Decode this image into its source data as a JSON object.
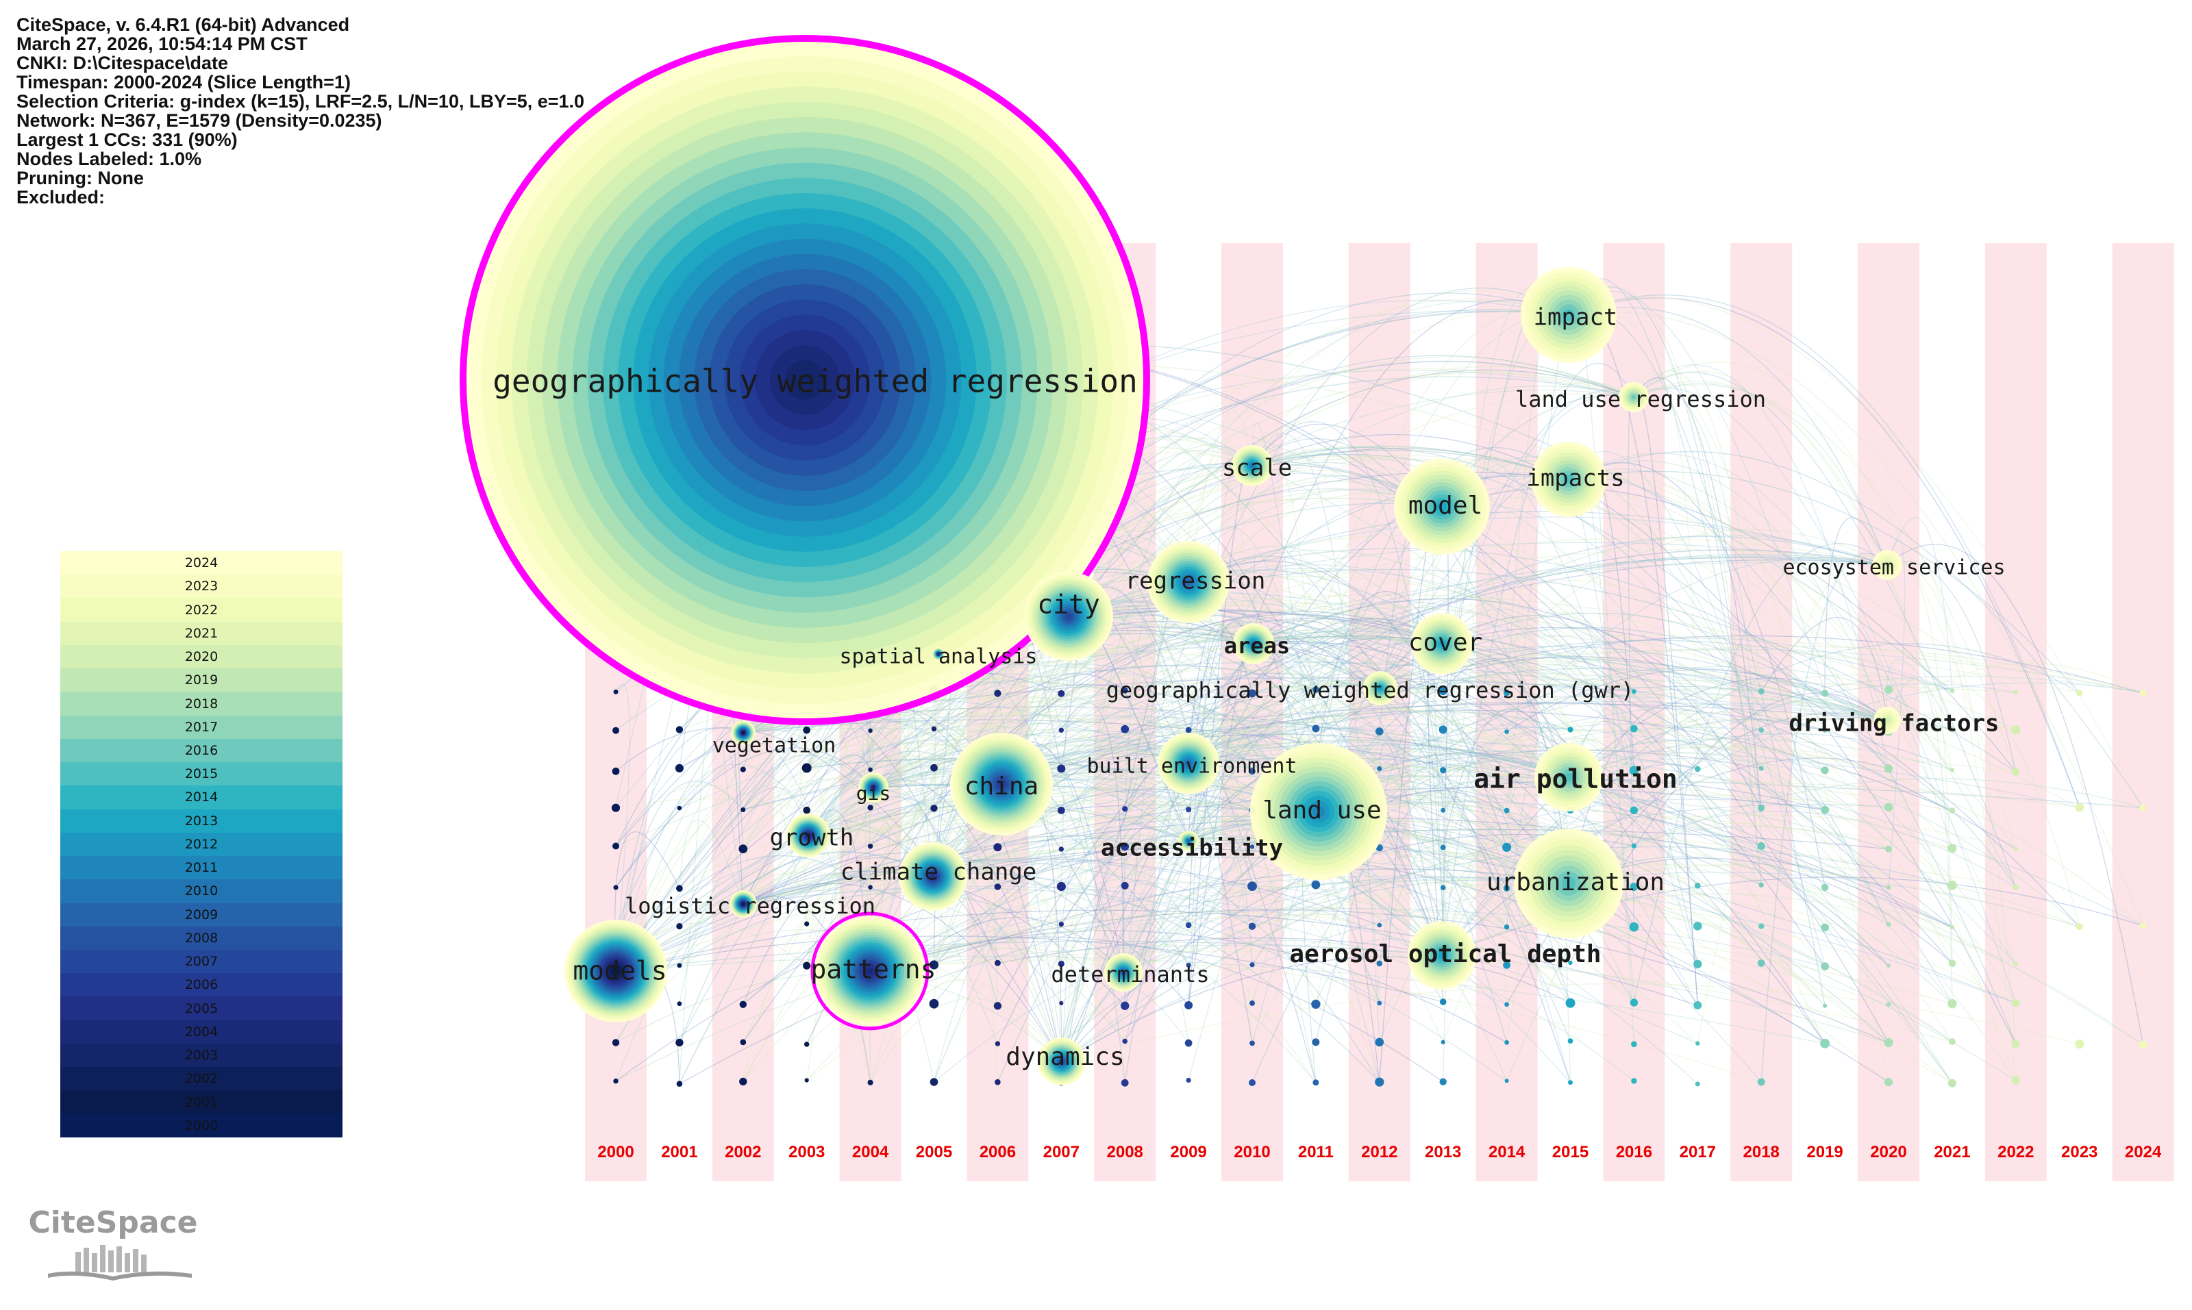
{
  "info": {
    "lines": [
      "CiteSpace, v. 6.4.R1 (64-bit) Advanced",
      "March 27, 2026, 10:54:14 PM CST",
      "CNKI: D:\\Citespace\\date",
      "Timespan: 2000-2024 (Slice Length=1)",
      "Selection Criteria: g-index (k=15), LRF=2.5, L/N=10, LBY=5, e=1.0",
      "Network: N=367, E=1579 (Density=0.0235)",
      "Largest 1 CCs: 331 (90%)",
      "Nodes Labeled: 1.0%",
      "Pruning: None",
      "Excluded:"
    ]
  },
  "legend": {
    "years": [
      "2024",
      "2023",
      "2022",
      "2021",
      "2020",
      "2019",
      "2018",
      "2017",
      "2016",
      "2015",
      "2014",
      "2013",
      "2012",
      "2011",
      "2010",
      "2009",
      "2008",
      "2007",
      "2006",
      "2005",
      "2004",
      "2003",
      "2002",
      "2001",
      "2000"
    ],
    "colors": [
      "#ffffcc",
      "#f9fdc2",
      "#f1fbb8",
      "#e3f5b4",
      "#d4efb3",
      "#c1e8b4",
      "#a9dfb6",
      "#8ed5b9",
      "#6fcabd",
      "#4fc0c0",
      "#2fb4c2",
      "#1da7c2",
      "#1d97c0",
      "#1f86bb",
      "#2275b3",
      "#2564ab",
      "#2553a2",
      "#24469b",
      "#233a93",
      "#212f86",
      "#1a2a78",
      "#142569",
      "#0e205a",
      "#091b4c",
      "#081d58"
    ]
  },
  "timeline": {
    "years": [
      "2000",
      "2001",
      "2002",
      "2003",
      "2004",
      "2005",
      "2006",
      "2007",
      "2008",
      "2009",
      "2010",
      "2011",
      "2012",
      "2013",
      "2014",
      "2015",
      "2016",
      "2017",
      "2018",
      "2019",
      "2020",
      "2021",
      "2022",
      "2023",
      "2024"
    ],
    "year_label_color": "#e60000",
    "stripe_color": "#fde4e8",
    "highlight_ring_color": "#ff00ff"
  },
  "nodes": [
    {
      "label": "geographically weighted regression",
      "year": "2003",
      "size": "huge",
      "burst": true
    },
    {
      "label": "impact",
      "year": "2015"
    },
    {
      "label": "land use regression",
      "year": "2016"
    },
    {
      "label": "scale",
      "year": "2010"
    },
    {
      "label": "model",
      "year": "2013"
    },
    {
      "label": "impacts",
      "year": "2015"
    },
    {
      "label": "regression",
      "year": "2009"
    },
    {
      "label": "ecosystem services",
      "year": "2020"
    },
    {
      "label": "city",
      "year": "2007"
    },
    {
      "label": "areas",
      "year": "2010"
    },
    {
      "label": "cover",
      "year": "2013"
    },
    {
      "label": "spatial analysis",
      "year": "2005"
    },
    {
      "label": "geographically weighted regression (gwr)",
      "year": "2012"
    },
    {
      "label": "driving factors",
      "year": "2020"
    },
    {
      "label": "vegetation",
      "year": "2002"
    },
    {
      "label": "built environment",
      "year": "2009"
    },
    {
      "label": "china",
      "year": "2006"
    },
    {
      "label": "air pollution",
      "year": "2015"
    },
    {
      "label": "gis",
      "year": "2004"
    },
    {
      "label": "land use",
      "year": "2011"
    },
    {
      "label": "growth",
      "year": "2003"
    },
    {
      "label": "accessibility",
      "year": "2009"
    },
    {
      "label": "climate change",
      "year": "2005"
    },
    {
      "label": "urbanization",
      "year": "2015"
    },
    {
      "label": "logistic regression",
      "year": "2002"
    },
    {
      "label": "models",
      "year": "2000"
    },
    {
      "label": "patterns",
      "year": "2004",
      "burst": true
    },
    {
      "label": "determinants",
      "year": "2008"
    },
    {
      "label": "aerosol optical depth",
      "year": "2013"
    },
    {
      "label": "dynamics",
      "year": "2007"
    }
  ],
  "logo": {
    "text": "CiteSpace"
  }
}
